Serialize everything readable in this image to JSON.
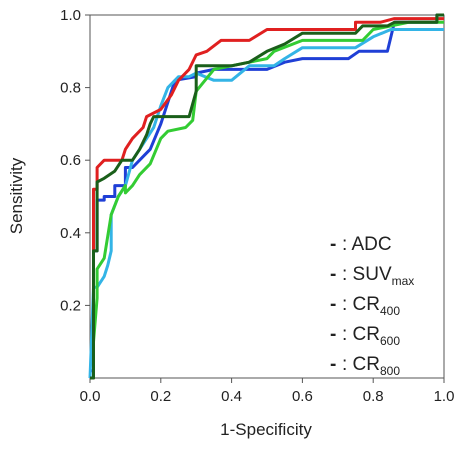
{
  "chart_data": {
    "type": "line",
    "title": "",
    "xlabel": "1-Specificity",
    "ylabel": "Sensitivity",
    "xlim": [
      0,
      1
    ],
    "ylim": [
      0,
      1
    ],
    "xticks": [
      "0.0",
      "0.2",
      "0.4",
      "0.6",
      "0.8",
      "1.0"
    ],
    "yticks": [
      "0.2",
      "0.4",
      "0.6",
      "0.8",
      "1.0"
    ],
    "grid": false,
    "legend_position": "bottom-right",
    "series": [
      {
        "name": "ADC",
        "color": "#1f3fd6",
        "points": [
          [
            0.0,
            0.02
          ],
          [
            0.01,
            0.02
          ],
          [
            0.01,
            0.35
          ],
          [
            0.02,
            0.35
          ],
          [
            0.02,
            0.49
          ],
          [
            0.04,
            0.49
          ],
          [
            0.04,
            0.5
          ],
          [
            0.07,
            0.5
          ],
          [
            0.07,
            0.53
          ],
          [
            0.1,
            0.53
          ],
          [
            0.1,
            0.58
          ],
          [
            0.12,
            0.58
          ],
          [
            0.15,
            0.61
          ],
          [
            0.17,
            0.63
          ],
          [
            0.2,
            0.7
          ],
          [
            0.22,
            0.76
          ],
          [
            0.24,
            0.82
          ],
          [
            0.3,
            0.83
          ],
          [
            0.3,
            0.84
          ],
          [
            0.35,
            0.85
          ],
          [
            0.45,
            0.85
          ],
          [
            0.5,
            0.85
          ],
          [
            0.55,
            0.87
          ],
          [
            0.6,
            0.88
          ],
          [
            0.73,
            0.88
          ],
          [
            0.76,
            0.9
          ],
          [
            0.84,
            0.9
          ],
          [
            0.86,
            0.98
          ],
          [
            0.98,
            0.98
          ],
          [
            0.98,
            1.0
          ],
          [
            1.0,
            1.0
          ]
        ]
      },
      {
        "name": "SUVmax",
        "color": "#33b4e6",
        "points": [
          [
            0.0,
            0.0
          ],
          [
            0.01,
            0.25
          ],
          [
            0.02,
            0.25
          ],
          [
            0.04,
            0.28
          ],
          [
            0.05,
            0.31
          ],
          [
            0.06,
            0.35
          ],
          [
            0.06,
            0.45
          ],
          [
            0.08,
            0.5
          ],
          [
            0.1,
            0.53
          ],
          [
            0.12,
            0.6
          ],
          [
            0.14,
            0.63
          ],
          [
            0.18,
            0.69
          ],
          [
            0.2,
            0.75
          ],
          [
            0.22,
            0.8
          ],
          [
            0.25,
            0.83
          ],
          [
            0.28,
            0.83
          ],
          [
            0.3,
            0.84
          ],
          [
            0.35,
            0.82
          ],
          [
            0.4,
            0.82
          ],
          [
            0.45,
            0.86
          ],
          [
            0.52,
            0.86
          ],
          [
            0.55,
            0.88
          ],
          [
            0.6,
            0.91
          ],
          [
            0.75,
            0.91
          ],
          [
            0.8,
            0.94
          ],
          [
            0.85,
            0.96
          ],
          [
            1.0,
            0.96
          ]
        ]
      },
      {
        "name": "CR400",
        "color": "#33cc33",
        "points": [
          [
            0.0,
            0.0
          ],
          [
            0.01,
            0.0
          ],
          [
            0.01,
            0.1
          ],
          [
            0.02,
            0.22
          ],
          [
            0.02,
            0.3
          ],
          [
            0.04,
            0.33
          ],
          [
            0.06,
            0.45
          ],
          [
            0.08,
            0.5
          ],
          [
            0.1,
            0.53
          ],
          [
            0.1,
            0.51
          ],
          [
            0.12,
            0.53
          ],
          [
            0.14,
            0.56
          ],
          [
            0.17,
            0.59
          ],
          [
            0.2,
            0.66
          ],
          [
            0.22,
            0.68
          ],
          [
            0.27,
            0.69
          ],
          [
            0.29,
            0.71
          ],
          [
            0.3,
            0.79
          ],
          [
            0.35,
            0.85
          ],
          [
            0.45,
            0.87
          ],
          [
            0.5,
            0.88
          ],
          [
            0.52,
            0.9
          ],
          [
            0.6,
            0.93
          ],
          [
            0.77,
            0.93
          ],
          [
            0.8,
            0.96
          ],
          [
            0.9,
            0.98
          ],
          [
            1.0,
            0.98
          ]
        ]
      },
      {
        "name": "CR600",
        "color": "#e02020",
        "points": [
          [
            0.0,
            0.0
          ],
          [
            0.01,
            0.0
          ],
          [
            0.01,
            0.52
          ],
          [
            0.02,
            0.52
          ],
          [
            0.02,
            0.58
          ],
          [
            0.04,
            0.6
          ],
          [
            0.09,
            0.6
          ],
          [
            0.1,
            0.63
          ],
          [
            0.12,
            0.66
          ],
          [
            0.15,
            0.69
          ],
          [
            0.16,
            0.72
          ],
          [
            0.2,
            0.74
          ],
          [
            0.23,
            0.78
          ],
          [
            0.25,
            0.82
          ],
          [
            0.28,
            0.85
          ],
          [
            0.3,
            0.89
          ],
          [
            0.33,
            0.9
          ],
          [
            0.37,
            0.93
          ],
          [
            0.45,
            0.93
          ],
          [
            0.5,
            0.96
          ],
          [
            0.75,
            0.96
          ],
          [
            0.75,
            0.98
          ],
          [
            0.82,
            0.98
          ],
          [
            0.86,
            0.99
          ],
          [
            1.0,
            0.99
          ]
        ]
      },
      {
        "name": "CR800",
        "color": "#1a5f1a",
        "points": [
          [
            0.0,
            0.0
          ],
          [
            0.01,
            0.0
          ],
          [
            0.01,
            0.35
          ],
          [
            0.02,
            0.35
          ],
          [
            0.02,
            0.54
          ],
          [
            0.04,
            0.55
          ],
          [
            0.07,
            0.57
          ],
          [
            0.09,
            0.6
          ],
          [
            0.12,
            0.6
          ],
          [
            0.14,
            0.63
          ],
          [
            0.16,
            0.67
          ],
          [
            0.17,
            0.7
          ],
          [
            0.18,
            0.72
          ],
          [
            0.2,
            0.72
          ],
          [
            0.28,
            0.72
          ],
          [
            0.3,
            0.79
          ],
          [
            0.3,
            0.86
          ],
          [
            0.4,
            0.86
          ],
          [
            0.45,
            0.87
          ],
          [
            0.5,
            0.9
          ],
          [
            0.55,
            0.92
          ],
          [
            0.6,
            0.95
          ],
          [
            0.75,
            0.95
          ],
          [
            0.77,
            0.97
          ],
          [
            0.84,
            0.97
          ],
          [
            0.86,
            0.98
          ],
          [
            0.98,
            0.98
          ],
          [
            0.98,
            1.0
          ],
          [
            1.0,
            1.0
          ]
        ]
      }
    ],
    "legend": [
      {
        "prefix": "- : ",
        "main": "ADC",
        "sub": "",
        "color": "#1f3fd6"
      },
      {
        "prefix": "- : ",
        "main": "SUV",
        "sub": "max",
        "color": "#33b4e6"
      },
      {
        "prefix": "- : ",
        "main": "CR",
        "sub": "400",
        "color": "#33cc33"
      },
      {
        "prefix": "- : ",
        "main": "CR",
        "sub": "600",
        "color": "#e02020"
      },
      {
        "prefix": "- : ",
        "main": "CR",
        "sub": "800",
        "color": "#1a5f1a"
      }
    ]
  }
}
